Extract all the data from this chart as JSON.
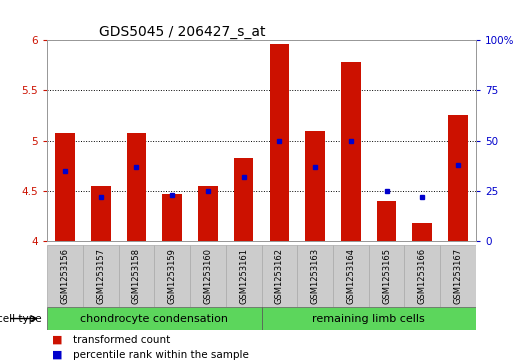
{
  "title": "GDS5045 / 206427_s_at",
  "samples": [
    "GSM1253156",
    "GSM1253157",
    "GSM1253158",
    "GSM1253159",
    "GSM1253160",
    "GSM1253161",
    "GSM1253162",
    "GSM1253163",
    "GSM1253164",
    "GSM1253165",
    "GSM1253166",
    "GSM1253167"
  ],
  "transformed_counts": [
    5.08,
    4.55,
    5.08,
    4.47,
    4.55,
    4.83,
    5.96,
    5.1,
    5.78,
    4.4,
    4.18,
    5.25
  ],
  "percentile_ranks": [
    35,
    22,
    37,
    23,
    25,
    32,
    50,
    37,
    50,
    25,
    22,
    38
  ],
  "ylim_left": [
    4.0,
    6.0
  ],
  "ylim_right": [
    0,
    100
  ],
  "yticks_left": [
    4.0,
    4.5,
    5.0,
    5.5,
    6.0
  ],
  "ytick_labels_left": [
    "4",
    "4.5",
    "5",
    "5.5",
    "6"
  ],
  "yticks_right": [
    0,
    25,
    50,
    75,
    100
  ],
  "ytick_labels_right": [
    "0",
    "25",
    "50",
    "75",
    "100%"
  ],
  "bar_color": "#cc1100",
  "marker_color": "#0000cc",
  "group1_label": "chondrocyte condensation",
  "group2_label": "remaining limb cells",
  "group1_count": 6,
  "group2_count": 6,
  "cell_type_label": "cell type",
  "legend1": "transformed count",
  "legend2": "percentile rank within the sample",
  "grid_color": "#000000",
  "background_plot": "#ffffff",
  "background_labels": "#cccccc",
  "background_group": "#5cd65c",
  "ylabel_left_color": "#cc1100",
  "ylabel_right_color": "#0000cc",
  "bar_width": 0.55,
  "baseline": 4.0,
  "title_fontsize": 10,
  "tick_fontsize": 7.5,
  "label_fontsize": 7.5,
  "group_fontsize": 8,
  "legend_fontsize": 7.5
}
